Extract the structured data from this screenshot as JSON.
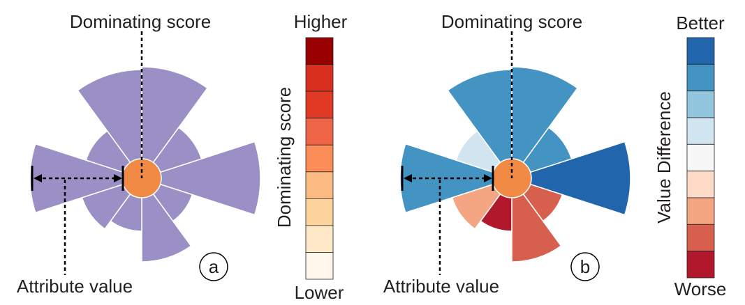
{
  "panels": [
    {
      "id": "a",
      "panel_label": "a",
      "top_annotation": "Dominating score",
      "bottom_annotation": "Attribute value",
      "center_color": "#f08a45",
      "petals": [
        {
          "value": 0.8,
          "color": "#9a90c5"
        },
        {
          "value": 0.45,
          "color": "#9a90c5"
        },
        {
          "value": 0.85,
          "color": "#9a90c5"
        },
        {
          "value": 0.38,
          "color": "#9a90c5"
        },
        {
          "value": 0.6,
          "color": "#9a90c5"
        },
        {
          "value": 0.38,
          "color": "#9a90c5"
        },
        {
          "value": 0.45,
          "color": "#9a90c5"
        },
        {
          "value": 0.8,
          "color": "#9a90c5"
        },
        {
          "value": 0.42,
          "color": "#9a90c5"
        },
        {
          "value": 0.78,
          "color": "#9a90c5"
        }
      ],
      "legend": {
        "top_label": "Higher",
        "bottom_label": "Lower",
        "side_label": "Dominating score",
        "colors": [
          "#990000",
          "#d7301f",
          "#e03a25",
          "#ef6548",
          "#fc8d59",
          "#fdbb84",
          "#fdd49e",
          "#fee8c8",
          "#fff7ec"
        ]
      }
    },
    {
      "id": "b",
      "panel_label": "b",
      "top_annotation": "Dominating score",
      "bottom_annotation": "Attribute value",
      "center_color": "#f08a45",
      "petals": [
        {
          "value": 0.8,
          "color": "#4393c3"
        },
        {
          "value": 0.45,
          "color": "#4393c3"
        },
        {
          "value": 0.85,
          "color": "#2166ac"
        },
        {
          "value": 0.38,
          "color": "#d6604d"
        },
        {
          "value": 0.6,
          "color": "#d6604d"
        },
        {
          "value": 0.38,
          "color": "#b2182b"
        },
        {
          "value": 0.45,
          "color": "#f4a582"
        },
        {
          "value": 0.8,
          "color": "#4393c3"
        },
        {
          "value": 0.42,
          "color": "#d1e5f0"
        },
        {
          "value": 0.78,
          "color": "#4393c3"
        }
      ],
      "legend": {
        "top_label": "Better",
        "bottom_label": "Worse",
        "side_label": "Value Difference",
        "colors": [
          "#2166ac",
          "#4393c3",
          "#92c5de",
          "#d1e5f0",
          "#f7f7f7",
          "#fddbc7",
          "#f4a582",
          "#d6604d",
          "#b2182b"
        ]
      }
    }
  ]
}
